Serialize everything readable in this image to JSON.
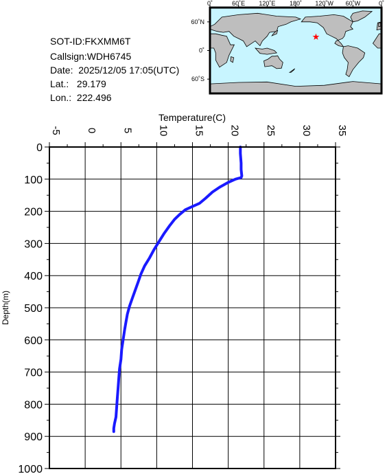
{
  "info": {
    "sot_id": "SOT-ID:FKXMM6T",
    "callsign": "Callsign:WDH6745",
    "date": "Date:  2025/12/05 17:05(UTC)",
    "lat": "Lat.:   29.179",
    "lon": "Lon.:  222.496"
  },
  "map": {
    "lon_labels": [
      "0˚",
      "60˚E",
      "120˚E",
      "180˚",
      "120˚W",
      "60˚W",
      "0˚"
    ],
    "lat_labels": [
      "60˚N",
      "0˚",
      "60˚S"
    ],
    "ocean_color": "#c8f5ff",
    "land_color": "#bebebe",
    "marker_color": "#ff0000",
    "marker_lon": 222.496,
    "marker_lat": 29.179
  },
  "chart_data": {
    "type": "line",
    "xlabel": "Temperature(C)",
    "ylabel": "Depth(m)",
    "xlim": [
      -5,
      35
    ],
    "ylim": [
      1000,
      0
    ],
    "xticks": [
      "-5",
      "0",
      "5",
      "10",
      "15",
      "20",
      "25",
      "30",
      "35"
    ],
    "yticks": [
      "0",
      "100",
      "200",
      "300",
      "400",
      "500",
      "600",
      "700",
      "800",
      "900",
      "1000"
    ],
    "grid": true,
    "line_color": "#1a1aff",
    "series": [
      {
        "x": [
          21.7,
          21.7,
          21.8,
          21.8,
          21.9,
          21.8,
          21.0,
          20.0,
          18.8,
          17.8,
          16.8,
          16.0,
          15.0,
          14.0,
          13.2,
          12.5,
          11.8,
          11.0,
          10.3,
          9.6,
          9.0,
          8.3,
          7.8,
          7.4,
          7.0,
          6.6,
          6.2,
          5.9,
          5.7,
          5.5,
          5.3,
          5.1,
          5.0,
          4.8,
          4.7,
          4.6,
          4.5,
          4.4,
          4.3,
          4.1,
          4.0,
          4.0
        ],
        "y": [
          0,
          20,
          50,
          70,
          90,
          95,
          100,
          110,
          125,
          140,
          160,
          175,
          185,
          195,
          210,
          225,
          245,
          270,
          295,
          320,
          345,
          370,
          395,
          420,
          445,
          470,
          495,
          520,
          545,
          570,
          600,
          630,
          660,
          690,
          720,
          750,
          780,
          810,
          840,
          860,
          875,
          885
        ]
      }
    ]
  }
}
